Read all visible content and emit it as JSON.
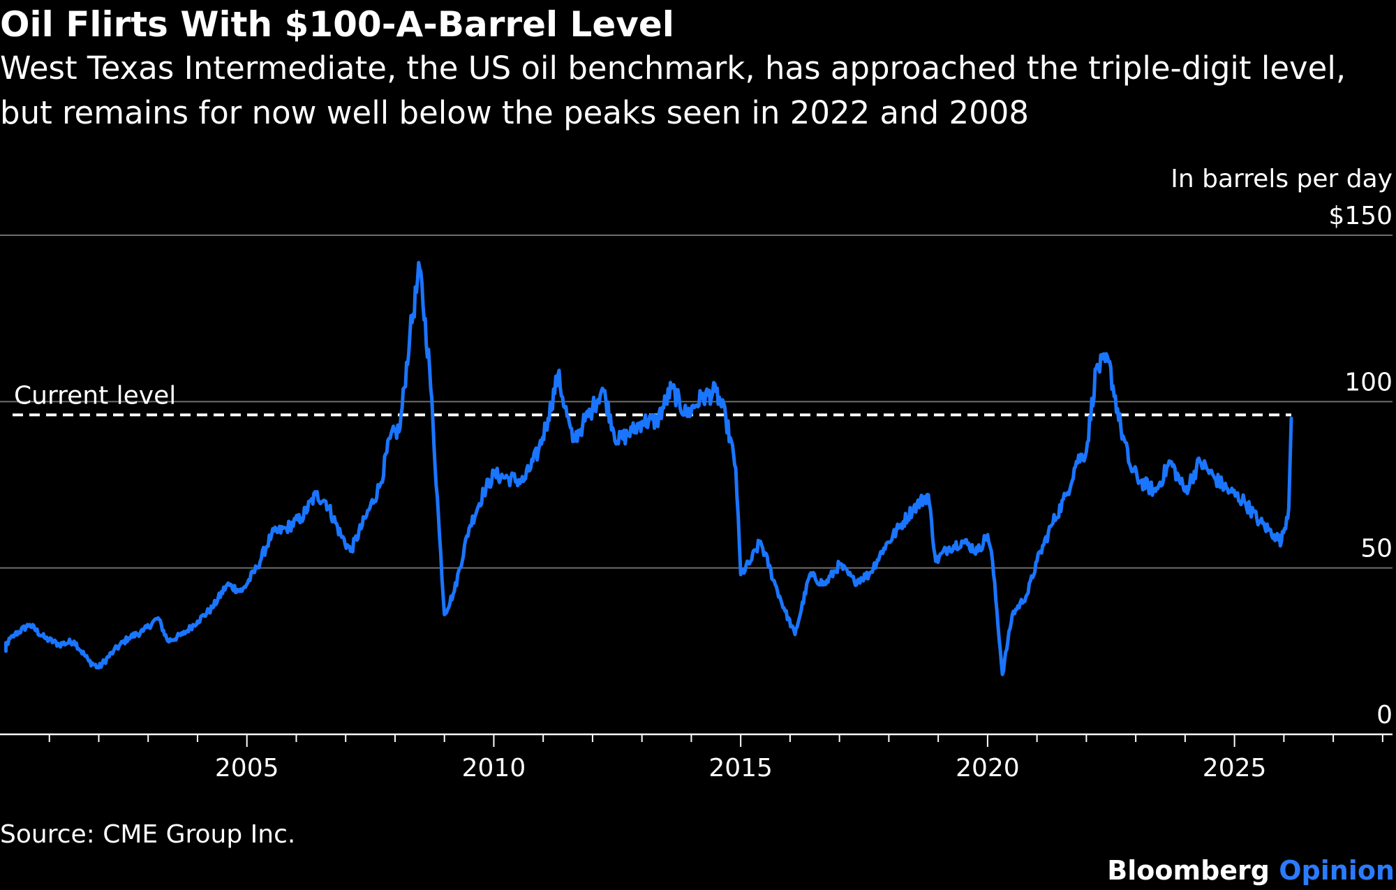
{
  "title": "Oil Flirts With $100-A-Barrel Level",
  "subtitle": "West Texas Intermediate, the US oil benchmark, has approached the triple-digit level, but remains for now well below the peaks seen in 2022 and 2008",
  "source": "Source: CME Group Inc.",
  "brand": {
    "primary": "Bloomberg",
    "secondary": "Opinion"
  },
  "colors": {
    "background": "#000000",
    "line": "#1a75ff",
    "text": "#ffffff",
    "grid": "#6e6e6e",
    "brand_accent": "#2b7bff"
  },
  "chart_data": {
    "type": "line",
    "title": "Oil Flirts With $100-A-Barrel Level",
    "unit_label": "In barrels per day",
    "y_tick_labels": [
      "0",
      "50",
      "100",
      "$150"
    ],
    "y_ticks": [
      0,
      50,
      100,
      150
    ],
    "ylim": [
      0,
      150
    ],
    "xlim": [
      2000.0,
      2028.2
    ],
    "x_ticks": [
      2005,
      2010,
      2015,
      2020,
      2025
    ],
    "x_tick_labels": [
      "2005",
      "2010",
      "2015",
      "2020",
      "2025"
    ],
    "grid": true,
    "reference_line": {
      "label": "Current level",
      "value": 96
    },
    "series": [
      {
        "name": "West Texas Intermediate",
        "x": [
          2000.0,
          2000.3,
          2000.6,
          2000.9,
          2001.2,
          2001.5,
          2001.8,
          2002.0,
          2002.3,
          2002.6,
          2002.9,
          2003.2,
          2003.4,
          2003.7,
          2004.0,
          2004.3,
          2004.6,
          2004.9,
          2005.2,
          2005.5,
          2005.8,
          2006.1,
          2006.4,
          2006.6,
          2006.9,
          2007.1,
          2007.4,
          2007.7,
          2007.9,
          2008.1,
          2008.3,
          2008.5,
          2008.7,
          2008.9,
          2009.0,
          2009.2,
          2009.5,
          2009.8,
          2010.0,
          2010.3,
          2010.6,
          2010.9,
          2011.1,
          2011.3,
          2011.6,
          2011.8,
          2012.0,
          2012.2,
          2012.5,
          2012.8,
          2013.0,
          2013.3,
          2013.6,
          2013.9,
          2014.2,
          2014.5,
          2014.7,
          2014.9,
          2015.0,
          2015.2,
          2015.4,
          2015.7,
          2015.9,
          2016.1,
          2016.4,
          2016.7,
          2017.0,
          2017.3,
          2017.6,
          2017.9,
          2018.2,
          2018.5,
          2018.8,
          2018.95,
          2019.2,
          2019.5,
          2019.8,
          2020.0,
          2020.1,
          2020.3,
          2020.5,
          2020.8,
          2021.0,
          2021.3,
          2021.6,
          2021.8,
          2022.0,
          2022.2,
          2022.45,
          2022.7,
          2022.9,
          2023.1,
          2023.4,
          2023.7,
          2024.0,
          2024.3,
          2024.6,
          2024.9,
          2025.2,
          2025.5,
          2025.8,
          2025.95,
          2026.1,
          2026.15
        ],
        "values": [
          25,
          30,
          33,
          29,
          27,
          28,
          22,
          20,
          25,
          29,
          31,
          35,
          28,
          30,
          34,
          38,
          45,
          43,
          50,
          60,
          62,
          65,
          72,
          70,
          60,
          55,
          65,
          75,
          89,
          92,
          120,
          140,
          110,
          60,
          36,
          43,
          62,
          73,
          78,
          77,
          76,
          85,
          95,
          108,
          88,
          93,
          98,
          104,
          88,
          91,
          94,
          94,
          104,
          96,
          101,
          103,
          95,
          80,
          48,
          52,
          58,
          45,
          37,
          30,
          48,
          45,
          51,
          46,
          48,
          56,
          62,
          68,
          72,
          52,
          56,
          58,
          55,
          60,
          52,
          18,
          36,
          42,
          52,
          63,
          72,
          82,
          85,
          110,
          112,
          92,
          80,
          76,
          73,
          82,
          73,
          82,
          77,
          73,
          70,
          64,
          60,
          58,
          68,
          95
        ]
      }
    ]
  }
}
